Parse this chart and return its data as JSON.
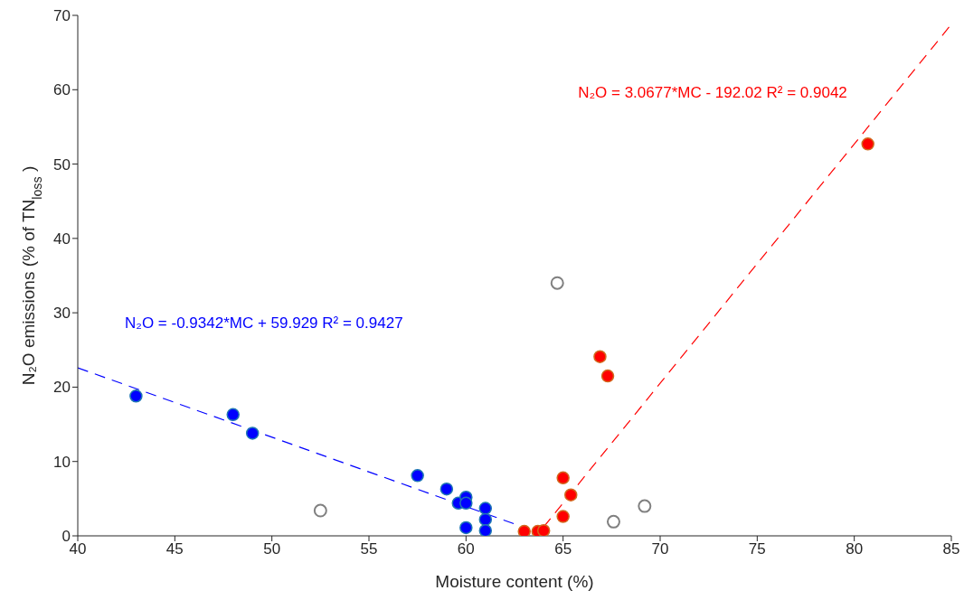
{
  "chart_data": {
    "type": "scatter",
    "xlabel": "Moisture content (%)",
    "ylabel": "N₂O emissions (% of TN$_{loss}$)",
    "xlim": [
      40,
      85
    ],
    "xticks": [
      40,
      45,
      50,
      55,
      60,
      65,
      70,
      75,
      80,
      85
    ],
    "ylim": [
      0,
      70
    ],
    "yticks": [
      0,
      10,
      20,
      30,
      40,
      50,
      60,
      70
    ],
    "grid": false,
    "legend": false,
    "marker": "circle",
    "annotations": [
      "N₂O = -0.9342*MC + 59.929 R² = 0.9427",
      "N₂O = 3.0677*MC - 192.02 R² = 0.9042"
    ],
    "series": [
      {
        "color": "#0000ff",
        "x": [
          43,
          48,
          49,
          57.5,
          59,
          59.6,
          60,
          60,
          60,
          61,
          61,
          61
        ],
        "values": [
          18.8,
          16.3,
          13.8,
          8.1,
          6.3,
          4.4,
          5.2,
          4.4,
          1.1,
          3.7,
          2.2,
          0.7
        ]
      },
      {
        "color": "#ff0000",
        "x": [
          63,
          63.7,
          64,
          65,
          65.4,
          65,
          66.9,
          67.3,
          80.7
        ],
        "values": [
          0.6,
          0.6,
          0.7,
          7.8,
          5.5,
          2.6,
          24.1,
          21.5,
          52.7
        ]
      },
      {
        "color": "#808080",
        "x": [
          52.5,
          64.7,
          67.6,
          69.2
        ],
        "values": [
          3.4,
          34.0,
          1.9,
          4.0
        ]
      },
      {
        "type": "line",
        "color": "#0000ff",
        "line_style": "dashed",
        "marker": "none",
        "x": [
          40,
          62.5
        ],
        "values": [
          22.6,
          1.6
        ]
      },
      {
        "type": "line",
        "color": "#ff0000",
        "line_style": "dashed",
        "marker": "none",
        "x": [
          64,
          85
        ],
        "values": [
          1.2,
          68.8
        ]
      }
    ]
  }
}
